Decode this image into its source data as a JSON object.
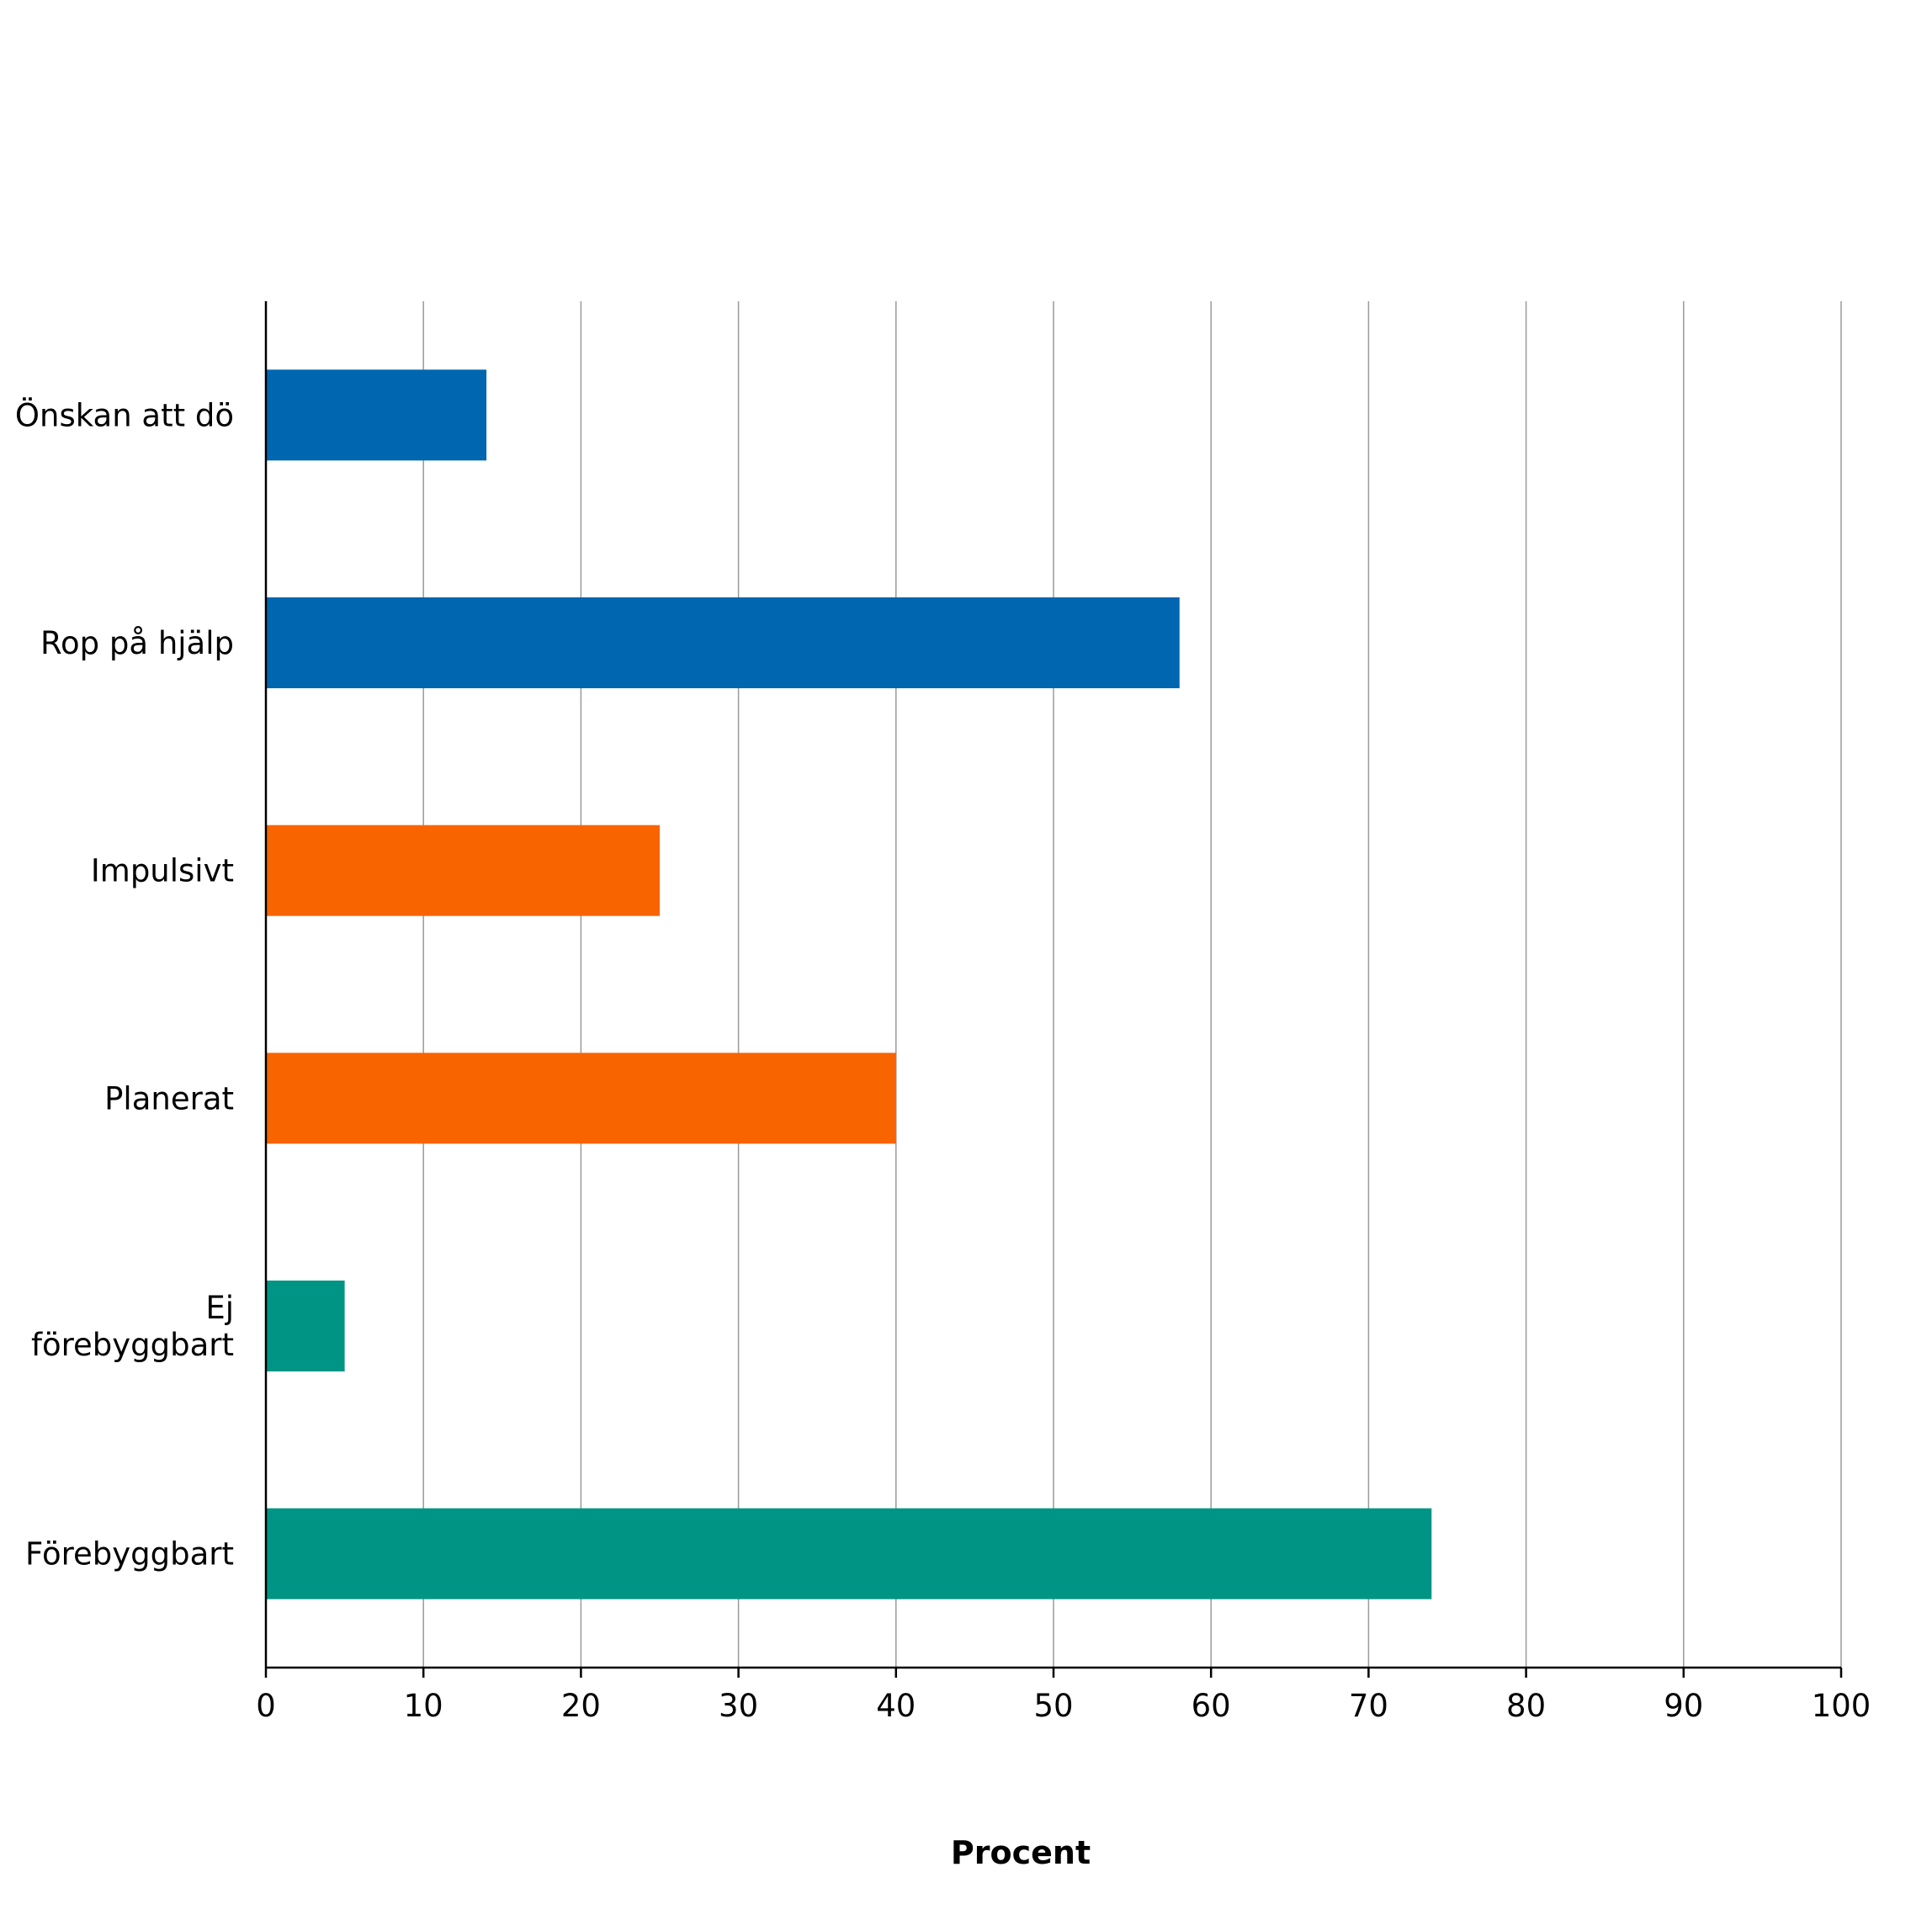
{
  "chart_data": {
    "type": "bar",
    "orientation": "horizontal",
    "categories": [
      [
        "Önskan att dö"
      ],
      [
        "Rop på hjälp"
      ],
      [
        "Impulsivt"
      ],
      [
        "Planerat"
      ],
      [
        "Ej",
        "förebyggbart"
      ],
      [
        "Förebyggbart"
      ]
    ],
    "values": [
      14,
      58,
      25,
      40,
      5,
      74
    ],
    "bar_colors": [
      "#0066b0",
      "#0066b0",
      "#f76400",
      "#f76400",
      "#009484",
      "#009484"
    ],
    "xlabel": "Procent",
    "xlim": [
      0,
      100
    ],
    "xticks": [
      0,
      10,
      20,
      30,
      40,
      50,
      60,
      70,
      80,
      90,
      100
    ],
    "grid": "vertical",
    "legend": "none"
  }
}
